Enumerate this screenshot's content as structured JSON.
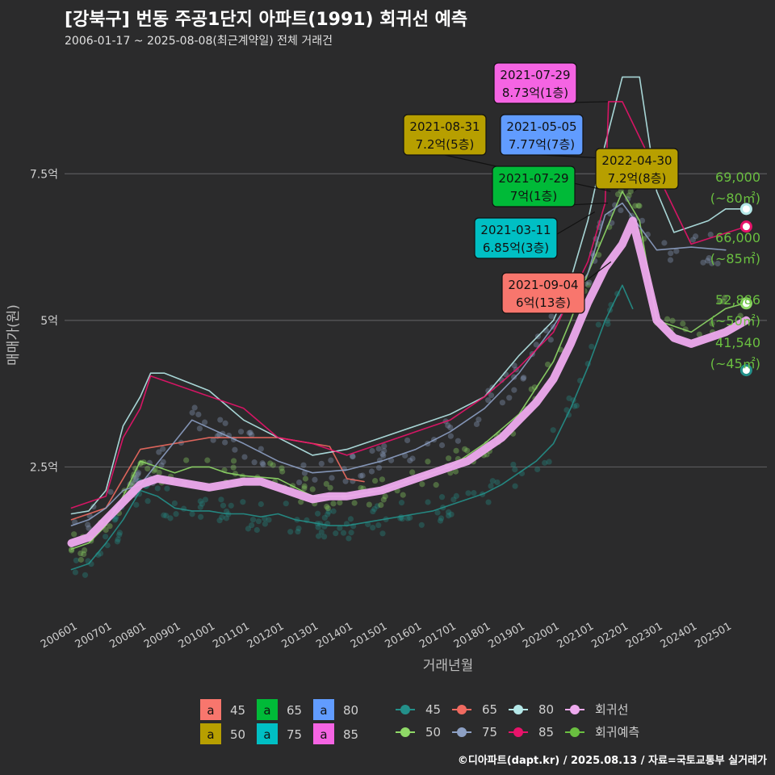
{
  "title": "[강북구] 번동 주공1단지 아파트(1991) 회귀선 예측",
  "subtitle": "2006-01-17 ~ 2025-08-08(최근계약일) 전체 거래건",
  "caption": "©디아파트(dapt.kr) / 2025.08.13 / 자료=국토교통부 실거래가",
  "colors": {
    "s45": "#23908a",
    "s50": "#8fd967",
    "s65": "#f06a60",
    "s75": "#8da0c4",
    "s80": "#b5e8e8",
    "s85": "#e8136a",
    "reg": "#eeaaee",
    "pred": "#6abf40",
    "lab45": "#f8766d",
    "lab50": "#b79f00",
    "lab65": "#00ba38",
    "lab75": "#00bfc4",
    "lab80": "#619cff",
    "lab85": "#f564e3"
  },
  "chart_data": {
    "type": "line",
    "xlabel": "거래년월",
    "ylabel": "매매가(원)",
    "x_ticks": [
      "200601",
      "200701",
      "200801",
      "200901",
      "201001",
      "201101",
      "201201",
      "201301",
      "201401",
      "201501",
      "201601",
      "201701",
      "201801",
      "201901",
      "202001",
      "202101",
      "202201",
      "202301",
      "202401",
      "202501"
    ],
    "y_ticks": [
      "2.5억",
      "5억",
      "7.5억"
    ],
    "ylim_eok": [
      0,
      9.5
    ],
    "series": [
      {
        "name": "45",
        "key": "s45",
        "points": [
          [
            2006.0,
            0.75
          ],
          [
            2006.5,
            0.85
          ],
          [
            2007.0,
            1.2
          ],
          [
            2007.5,
            1.6
          ],
          [
            2008.0,
            2.1
          ],
          [
            2008.5,
            2.0
          ],
          [
            2009.0,
            1.8
          ],
          [
            2009.5,
            1.75
          ],
          [
            2010.0,
            1.75
          ],
          [
            2010.5,
            1.7
          ],
          [
            2011.0,
            1.7
          ],
          [
            2011.5,
            1.65
          ],
          [
            2012.0,
            1.7
          ],
          [
            2012.5,
            1.6
          ],
          [
            2013.0,
            1.55
          ],
          [
            2013.5,
            1.5
          ],
          [
            2014.0,
            1.5
          ],
          [
            2014.5,
            1.55
          ],
          [
            2015.0,
            1.6
          ],
          [
            2015.5,
            1.65
          ],
          [
            2016.0,
            1.7
          ],
          [
            2016.5,
            1.75
          ],
          [
            2017.0,
            1.85
          ],
          [
            2017.5,
            1.95
          ],
          [
            2018.0,
            2.05
          ],
          [
            2018.5,
            2.2
          ],
          [
            2019.0,
            2.4
          ],
          [
            2019.5,
            2.6
          ],
          [
            2020.0,
            2.9
          ],
          [
            2020.5,
            3.5
          ],
          [
            2021.0,
            4.2
          ],
          [
            2021.5,
            5.0
          ],
          [
            2022.0,
            5.6
          ],
          [
            2022.3,
            5.2
          ]
        ]
      },
      {
        "name": "50",
        "key": "s50",
        "points": [
          [
            2006.0,
            1.1
          ],
          [
            2006.5,
            1.2
          ],
          [
            2007.0,
            1.5
          ],
          [
            2007.5,
            2.0
          ],
          [
            2008.0,
            2.6
          ],
          [
            2008.5,
            2.5
          ],
          [
            2009.0,
            2.4
          ],
          [
            2009.5,
            2.5
          ],
          [
            2010.0,
            2.5
          ],
          [
            2010.5,
            2.4
          ],
          [
            2011.0,
            2.35
          ],
          [
            2012.0,
            2.3
          ],
          [
            2013.0,
            2.0
          ],
          [
            2014.0,
            2.0
          ],
          [
            2015.0,
            2.1
          ],
          [
            2016.0,
            2.3
          ],
          [
            2017.0,
            2.5
          ],
          [
            2018.0,
            2.9
          ],
          [
            2019.0,
            3.4
          ],
          [
            2020.0,
            4.3
          ],
          [
            2020.5,
            5.0
          ],
          [
            2021.0,
            5.8
          ],
          [
            2021.5,
            6.5
          ],
          [
            2022.0,
            7.2
          ],
          [
            2022.5,
            6.7
          ],
          [
            2023.0,
            5.0
          ],
          [
            2024.0,
            4.8
          ],
          [
            2025.0,
            5.2
          ],
          [
            2025.6,
            5.3
          ]
        ]
      },
      {
        "name": "65",
        "key": "s65",
        "points": [
          [
            2006.0,
            1.6
          ],
          [
            2007.0,
            1.8
          ],
          [
            2008.0,
            2.8
          ],
          [
            2010.0,
            3.0
          ],
          [
            2012.0,
            3.0
          ],
          [
            2013.5,
            2.85
          ],
          [
            2014.0,
            2.3
          ],
          [
            2014.5,
            2.25
          ]
        ]
      },
      {
        "name": "75",
        "key": "s75",
        "points": [
          [
            2006.0,
            1.5
          ],
          [
            2006.5,
            1.6
          ],
          [
            2007.0,
            1.8
          ],
          [
            2007.5,
            2.1
          ],
          [
            2008.0,
            2.2
          ],
          [
            2009.5,
            3.3
          ],
          [
            2011.0,
            2.9
          ],
          [
            2012.0,
            2.6
          ],
          [
            2013.0,
            2.4
          ],
          [
            2014.0,
            2.45
          ],
          [
            2015.0,
            2.6
          ],
          [
            2016.0,
            2.8
          ],
          [
            2017.0,
            3.1
          ],
          [
            2018.0,
            3.5
          ],
          [
            2019.0,
            4.1
          ],
          [
            2020.0,
            4.9
          ],
          [
            2021.0,
            5.8
          ],
          [
            2021.5,
            6.8
          ],
          [
            2022.0,
            7.0
          ],
          [
            2023.0,
            6.2
          ],
          [
            2024.0,
            6.25
          ],
          [
            2025.0,
            6.2
          ]
        ]
      },
      {
        "name": "80",
        "key": "s80",
        "points": [
          [
            2006.0,
            1.7
          ],
          [
            2006.5,
            1.75
          ],
          [
            2007.0,
            2.1
          ],
          [
            2007.5,
            3.2
          ],
          [
            2008.0,
            3.7
          ],
          [
            2008.3,
            4.1
          ],
          [
            2008.7,
            4.1
          ],
          [
            2010.0,
            3.8
          ],
          [
            2011.0,
            3.3
          ],
          [
            2012.0,
            3.0
          ],
          [
            2013.0,
            2.7
          ],
          [
            2014.0,
            2.8
          ],
          [
            2015.0,
            3.0
          ],
          [
            2016.0,
            3.2
          ],
          [
            2017.0,
            3.4
          ],
          [
            2018.0,
            3.7
          ],
          [
            2019.0,
            4.4
          ],
          [
            2020.0,
            5.0
          ],
          [
            2020.5,
            5.7
          ],
          [
            2021.0,
            6.7
          ],
          [
            2021.4,
            7.77
          ],
          [
            2022.0,
            9.15
          ],
          [
            2022.5,
            9.15
          ],
          [
            2023.0,
            7.2
          ],
          [
            2023.5,
            6.5
          ],
          [
            2024.0,
            6.6
          ],
          [
            2024.5,
            6.7
          ],
          [
            2025.0,
            6.9
          ],
          [
            2025.6,
            6.9
          ]
        ]
      },
      {
        "name": "85",
        "key": "s85",
        "points": [
          [
            2006.0,
            1.8
          ],
          [
            2007.0,
            2.0
          ],
          [
            2007.5,
            3.0
          ],
          [
            2008.0,
            3.5
          ],
          [
            2008.3,
            4.05
          ],
          [
            2011.0,
            3.5
          ],
          [
            2012.0,
            3.0
          ],
          [
            2013.0,
            2.9
          ],
          [
            2014.0,
            2.7
          ],
          [
            2015.0,
            2.9
          ],
          [
            2016.0,
            3.1
          ],
          [
            2017.0,
            3.3
          ],
          [
            2018.0,
            3.7
          ],
          [
            2019.0,
            4.2
          ],
          [
            2020.0,
            4.8
          ],
          [
            2021.0,
            6.0
          ],
          [
            2021.5,
            7.0
          ],
          [
            2021.6,
            8.73
          ],
          [
            2022.0,
            8.73
          ],
          [
            2024.0,
            6.3
          ],
          [
            2025.6,
            6.6
          ]
        ]
      },
      {
        "name": "회귀선",
        "key": "reg",
        "points": [
          [
            2006.0,
            1.2
          ],
          [
            2006.5,
            1.3
          ],
          [
            2007.0,
            1.6
          ],
          [
            2007.5,
            1.9
          ],
          [
            2008.0,
            2.2
          ],
          [
            2008.5,
            2.3
          ],
          [
            2009.0,
            2.25
          ],
          [
            2009.5,
            2.2
          ],
          [
            2010.0,
            2.15
          ],
          [
            2010.5,
            2.2
          ],
          [
            2011.0,
            2.25
          ],
          [
            2011.5,
            2.25
          ],
          [
            2012.0,
            2.15
          ],
          [
            2012.5,
            2.05
          ],
          [
            2013.0,
            1.95
          ],
          [
            2013.5,
            2.0
          ],
          [
            2014.0,
            2.0
          ],
          [
            2014.5,
            2.05
          ],
          [
            2015.0,
            2.1
          ],
          [
            2015.5,
            2.2
          ],
          [
            2016.0,
            2.3
          ],
          [
            2016.5,
            2.4
          ],
          [
            2017.0,
            2.5
          ],
          [
            2017.5,
            2.6
          ],
          [
            2018.0,
            2.8
          ],
          [
            2018.5,
            3.0
          ],
          [
            2019.0,
            3.3
          ],
          [
            2019.5,
            3.6
          ],
          [
            2020.0,
            4.0
          ],
          [
            2020.5,
            4.6
          ],
          [
            2021.0,
            5.3
          ],
          [
            2021.5,
            5.9
          ],
          [
            2022.0,
            6.3
          ],
          [
            2022.3,
            6.7
          ],
          [
            2022.6,
            6.0
          ],
          [
            2023.0,
            5.0
          ],
          [
            2023.5,
            4.7
          ],
          [
            2024.0,
            4.6
          ],
          [
            2024.5,
            4.7
          ],
          [
            2025.0,
            4.8
          ],
          [
            2025.6,
            5.0
          ]
        ]
      }
    ],
    "predictions": [
      {
        "key": "s80",
        "x": 2025.6,
        "y": 6.9,
        "value": "69,000",
        "area": "(~80㎡)"
      },
      {
        "key": "s85",
        "x": 2025.6,
        "y": 6.6,
        "value": "66,000",
        "area": "(~85㎡)"
      },
      {
        "key": "s50",
        "x": 2025.6,
        "y": 5.29,
        "value": "52,886",
        "area": "(~50㎡)"
      },
      {
        "key": "s45",
        "x": 2025.6,
        "y": 4.15,
        "value": "41,540",
        "area": "(~45㎡)"
      }
    ],
    "annotations": [
      {
        "key": "lab85",
        "date": "2021-07-29",
        "price": "8.73억(1층)",
        "px": [
          2021.58,
          8.73
        ]
      },
      {
        "key": "lab50",
        "date": "2021-08-31",
        "price": "7.2억(5층)",
        "px": [
          2021.66,
          7.2
        ]
      },
      {
        "key": "lab80",
        "date": "2021-05-05",
        "price": "7.77억(7층)",
        "px": [
          2021.34,
          7.77
        ]
      },
      {
        "key": "lab65",
        "date": "2021-07-29",
        "price": "7억(1층)",
        "px": [
          2021.58,
          7.0
        ]
      },
      {
        "key": "lab50",
        "date": "2022-04-30",
        "price": "7.2억(8층)",
        "px": [
          2022.33,
          7.2
        ]
      },
      {
        "key": "lab75",
        "date": "2021-03-11",
        "price": "6.85억(3층)",
        "px": [
          2021.2,
          6.85
        ]
      },
      {
        "key": "lab45",
        "date": "2021-09-04",
        "price": "6억(13층)",
        "px": [
          2021.67,
          6.0
        ]
      }
    ],
    "legend_labels": {
      "items": [
        {
          "label": "45",
          "key": "lab45"
        },
        {
          "label": "50",
          "key": "lab50"
        },
        {
          "label": "65",
          "key": "lab65"
        },
        {
          "label": "75",
          "key": "lab75"
        },
        {
          "label": "80",
          "key": "lab80"
        },
        {
          "label": "85",
          "key": "lab85"
        }
      ],
      "glyph": "a"
    },
    "legend_lines": [
      {
        "label": "45",
        "key": "s45"
      },
      {
        "label": "50",
        "key": "s50"
      },
      {
        "label": "65",
        "key": "s65"
      },
      {
        "label": "75",
        "key": "s75"
      },
      {
        "label": "80",
        "key": "s80"
      },
      {
        "label": "85",
        "key": "s85"
      },
      {
        "label": "회귀선",
        "key": "reg"
      },
      {
        "label": "회귀예측",
        "key": "pred"
      }
    ]
  }
}
